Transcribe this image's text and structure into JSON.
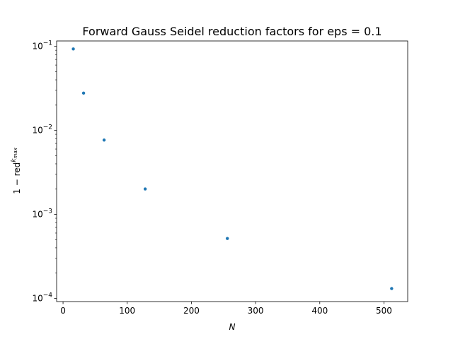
{
  "chart_data": {
    "type": "scatter",
    "title": "Forward Gauss Seidel reduction factors for eps = 0.1",
    "xlabel": "N",
    "ylabel": {
      "base": "1 − red",
      "exponent": "k",
      "exponent_subscript": "max"
    },
    "x_scale": "linear",
    "y_scale": "log",
    "xlim": [
      -10,
      537
    ],
    "ylim": [
      9.17e-05,
      0.1161
    ],
    "grid": false,
    "marker_color": "#1f77b4",
    "x_ticks": [
      {
        "value": 0,
        "label": "0"
      },
      {
        "value": 100,
        "label": "100"
      },
      {
        "value": 200,
        "label": "200"
      },
      {
        "value": 300,
        "label": "300"
      },
      {
        "value": 400,
        "label": "400"
      },
      {
        "value": 500,
        "label": "500"
      }
    ],
    "y_ticks": [
      {
        "value": 0.1,
        "base": "10",
        "exp": "−1"
      },
      {
        "value": 0.01,
        "base": "10",
        "exp": "−2"
      },
      {
        "value": 0.001,
        "base": "10",
        "exp": "−3"
      },
      {
        "value": 0.0001,
        "base": "10",
        "exp": "−4"
      }
    ],
    "series": [
      {
        "x": [
          16,
          32,
          64,
          128,
          256,
          512
        ],
        "y": [
          0.0933,
          0.0278,
          0.00768,
          0.00201,
          0.000517,
          0.000131
        ]
      }
    ]
  }
}
